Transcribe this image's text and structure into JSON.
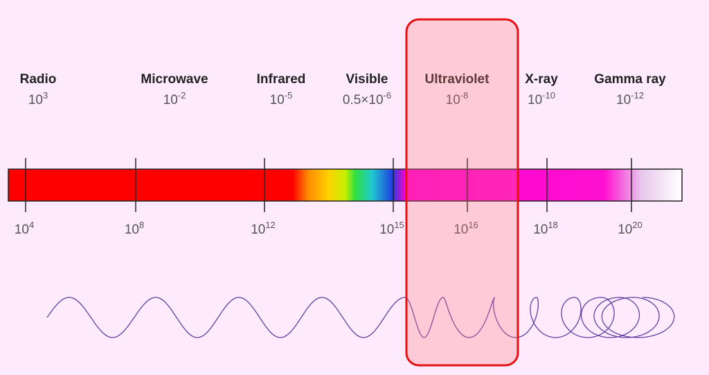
{
  "bands": [
    {
      "name": "Radio",
      "wavelength": {
        "base": "10",
        "exponent": "3"
      }
    },
    {
      "name": "Microwave",
      "wavelength": {
        "base": "10",
        "exponent": "-2"
      }
    },
    {
      "name": "Infrared",
      "wavelength": {
        "base": "10",
        "exponent": "-5"
      }
    },
    {
      "name": "Visible",
      "wavelength": {
        "base": "0.5×10",
        "exponent": "-6"
      }
    },
    {
      "name": "Ultraviolet",
      "wavelength": {
        "base": "10",
        "exponent": "-8"
      }
    },
    {
      "name": "X-ray",
      "wavelength": {
        "base": "10",
        "exponent": "-10"
      }
    },
    {
      "name": "Gamma ray",
      "wavelength": {
        "base": "10",
        "exponent": "-12"
      }
    }
  ],
  "frequency_ticks": [
    {
      "base": "10",
      "exponent": "4"
    },
    {
      "base": "10",
      "exponent": "8"
    },
    {
      "base": "10",
      "exponent": "12"
    },
    {
      "base": "10",
      "exponent": "15"
    },
    {
      "base": "10",
      "exponent": "16"
    },
    {
      "base": "10",
      "exponent": "18"
    },
    {
      "base": "10",
      "exponent": "20"
    }
  ]
}
